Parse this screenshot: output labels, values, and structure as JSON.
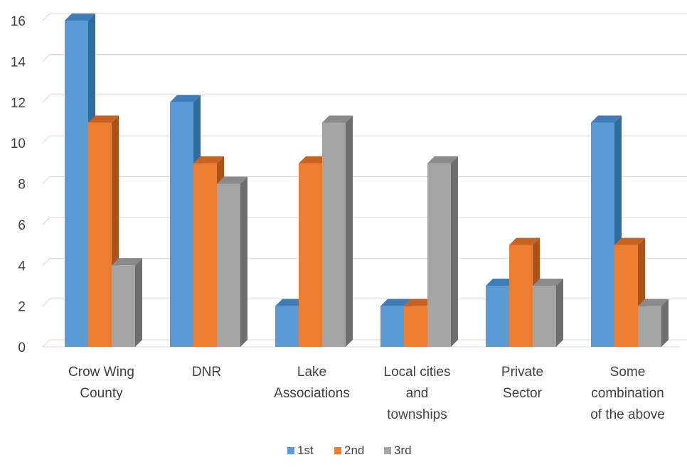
{
  "chart_data": {
    "type": "bar",
    "style": "3d-clustered-column",
    "categories": [
      [
        "Crow Wing",
        "County"
      ],
      [
        "DNR"
      ],
      [
        "Lake",
        "Associations"
      ],
      [
        "Local cities",
        "and",
        "townships"
      ],
      [
        "Private",
        "Sector"
      ],
      [
        "Some",
        "combination",
        "of the above"
      ]
    ],
    "series": [
      {
        "name": "1st",
        "values": [
          16,
          12,
          2,
          2,
          3,
          11
        ],
        "color": "#5B9BD5",
        "side_color": "#2E6B9E",
        "top_color": "#3E7DB8"
      },
      {
        "name": "2nd",
        "values": [
          11,
          9,
          9,
          2,
          5,
          5
        ],
        "color": "#ED7D31",
        "side_color": "#A9531A",
        "top_color": "#C8631F"
      },
      {
        "name": "3rd",
        "values": [
          4,
          8,
          11,
          9,
          3,
          2
        ],
        "color": "#A5A5A5",
        "side_color": "#6E6E6E",
        "top_color": "#8A8A8A"
      }
    ],
    "y_ticks": [
      0,
      2,
      4,
      6,
      8,
      10,
      12,
      14,
      16
    ],
    "ylim": [
      0,
      16
    ],
    "grid": true,
    "legend_position": "bottom",
    "title": "",
    "xlabel": "",
    "ylabel": ""
  }
}
